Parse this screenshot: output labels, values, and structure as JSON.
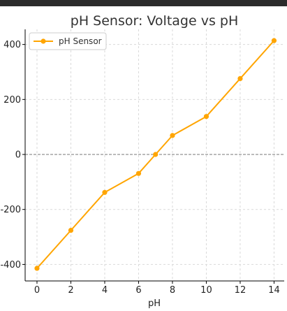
{
  "chart_data": {
    "type": "line",
    "title": "pH Sensor: Voltage vs pH",
    "xlabel": "pH",
    "ylabel": "",
    "xlim": [
      -0.7,
      14.6
    ],
    "ylim": [
      -460,
      455
    ],
    "xticks": [
      0,
      2,
      4,
      6,
      8,
      10,
      12,
      14
    ],
    "yticks": [
      400,
      200,
      0,
      -200,
      -400
    ],
    "grid": true,
    "zero_line": true,
    "legend": "top-left",
    "series": [
      {
        "name": "pH Sensor",
        "color": "#FFA500",
        "x": [
          0,
          2,
          4,
          6,
          7,
          8,
          10,
          12,
          14
        ],
        "y": [
          -414,
          -276,
          -138,
          -69,
          0,
          69,
          138,
          276,
          414
        ]
      }
    ]
  },
  "colors": {
    "line": "#FFA500",
    "grid": "#d9d9d9",
    "axis": "#000000"
  }
}
